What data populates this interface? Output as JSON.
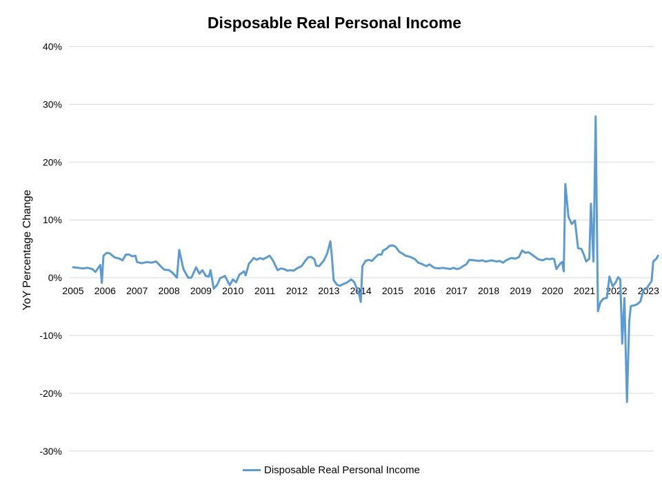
{
  "chart_data": {
    "type": "line",
    "title": "Disposable Real Personal Income",
    "xlabel": "",
    "ylabel": "YoY Percentage Change",
    "x_unit": "year (monthly observations)",
    "xlim": [
      2005.0,
      2023.3
    ],
    "ylim": [
      -30,
      40
    ],
    "y_ticks": [
      "40%",
      "30%",
      "20%",
      "10%",
      "0%",
      "-10%",
      "-20%",
      "-30%"
    ],
    "y_tick_values": [
      40,
      30,
      20,
      10,
      0,
      -10,
      -20,
      -30
    ],
    "x_ticks": [
      "2005",
      "2006",
      "2007",
      "2008",
      "2009",
      "2010",
      "2011",
      "2012",
      "2013",
      "2014",
      "2015",
      "2016",
      "2017",
      "2018",
      "2019",
      "2020",
      "2021",
      "2022",
      "2023"
    ],
    "grid": "horizontal",
    "legend_position": "bottom",
    "series": [
      {
        "name": "Disposable Real Personal Income",
        "color": "#5b9bd5",
        "points": [
          [
            2005.0,
            1.8
          ],
          [
            2005.15,
            1.7
          ],
          [
            2005.3,
            1.6
          ],
          [
            2005.45,
            1.7
          ],
          [
            2005.6,
            1.5
          ],
          [
            2005.7,
            1.0
          ],
          [
            2005.85,
            2.2
          ],
          [
            2005.9,
            -0.9
          ],
          [
            2005.95,
            3.8
          ],
          [
            2006.05,
            4.3
          ],
          [
            2006.15,
            4.2
          ],
          [
            2006.3,
            3.5
          ],
          [
            2006.45,
            3.3
          ],
          [
            2006.55,
            3.0
          ],
          [
            2006.65,
            4.0
          ],
          [
            2006.75,
            4.0
          ],
          [
            2006.85,
            3.7
          ],
          [
            2006.95,
            3.8
          ],
          [
            2007.0,
            2.7
          ],
          [
            2007.15,
            2.5
          ],
          [
            2007.3,
            2.7
          ],
          [
            2007.45,
            2.6
          ],
          [
            2007.6,
            2.8
          ],
          [
            2007.7,
            2.2
          ],
          [
            2007.85,
            1.4
          ],
          [
            2008.0,
            1.3
          ],
          [
            2008.1,
            0.9
          ],
          [
            2008.25,
            0.0
          ],
          [
            2008.32,
            4.8
          ],
          [
            2008.45,
            1.5
          ],
          [
            2008.6,
            0.0
          ],
          [
            2008.7,
            0.0
          ],
          [
            2008.85,
            1.8
          ],
          [
            2008.95,
            0.7
          ],
          [
            2009.05,
            1.3
          ],
          [
            2009.15,
            0.3
          ],
          [
            2009.25,
            0.2
          ],
          [
            2009.3,
            1.3
          ],
          [
            2009.4,
            -1.9
          ],
          [
            2009.5,
            -1.3
          ],
          [
            2009.6,
            -0.1
          ],
          [
            2009.75,
            0.3
          ],
          [
            2009.9,
            -1.3
          ],
          [
            2010.0,
            -0.3
          ],
          [
            2010.1,
            -0.8
          ],
          [
            2010.2,
            0.5
          ],
          [
            2010.35,
            1.1
          ],
          [
            2010.4,
            0.4
          ],
          [
            2010.5,
            2.4
          ],
          [
            2010.65,
            3.4
          ],
          [
            2010.75,
            3.1
          ],
          [
            2010.85,
            3.4
          ],
          [
            2010.95,
            3.2
          ],
          [
            2011.05,
            3.5
          ],
          [
            2011.15,
            3.8
          ],
          [
            2011.25,
            3.0
          ],
          [
            2011.4,
            1.3
          ],
          [
            2011.5,
            1.6
          ],
          [
            2011.6,
            1.5
          ],
          [
            2011.7,
            1.2
          ],
          [
            2011.8,
            1.3
          ],
          [
            2011.9,
            1.2
          ],
          [
            2012.0,
            1.6
          ],
          [
            2012.15,
            2.0
          ],
          [
            2012.25,
            2.8
          ],
          [
            2012.35,
            3.5
          ],
          [
            2012.45,
            3.6
          ],
          [
            2012.55,
            3.2
          ],
          [
            2012.6,
            2.1
          ],
          [
            2012.7,
            2.0
          ],
          [
            2012.85,
            3.0
          ],
          [
            2012.95,
            4.2
          ],
          [
            2013.05,
            6.3
          ],
          [
            2013.1,
            3.5
          ],
          [
            2013.15,
            -0.4
          ],
          [
            2013.25,
            -1.2
          ],
          [
            2013.35,
            -1.4
          ],
          [
            2013.45,
            -1.1
          ],
          [
            2013.55,
            -0.9
          ],
          [
            2013.65,
            -0.5
          ],
          [
            2013.7,
            -0.3
          ],
          [
            2013.8,
            -0.8
          ],
          [
            2013.85,
            -1.5
          ],
          [
            2013.95,
            -2.8
          ],
          [
            2014.0,
            -4.2
          ],
          [
            2014.05,
            2.0
          ],
          [
            2014.15,
            2.9
          ],
          [
            2014.25,
            3.1
          ],
          [
            2014.35,
            2.9
          ],
          [
            2014.45,
            3.5
          ],
          [
            2014.55,
            4.0
          ],
          [
            2014.65,
            4.0
          ],
          [
            2014.7,
            4.7
          ],
          [
            2014.8,
            5.0
          ],
          [
            2014.9,
            5.5
          ],
          [
            2015.0,
            5.6
          ],
          [
            2015.1,
            5.3
          ],
          [
            2015.2,
            4.5
          ],
          [
            2015.3,
            4.2
          ],
          [
            2015.4,
            3.8
          ],
          [
            2015.55,
            3.6
          ],
          [
            2015.7,
            3.2
          ],
          [
            2015.8,
            2.6
          ],
          [
            2015.9,
            2.4
          ],
          [
            2016.05,
            2.0
          ],
          [
            2016.15,
            2.3
          ],
          [
            2016.3,
            1.7
          ],
          [
            2016.45,
            1.6
          ],
          [
            2016.55,
            1.7
          ],
          [
            2016.7,
            1.6
          ],
          [
            2016.8,
            1.5
          ],
          [
            2016.9,
            1.7
          ],
          [
            2017.0,
            1.5
          ],
          [
            2017.1,
            1.6
          ],
          [
            2017.2,
            2.0
          ],
          [
            2017.3,
            2.3
          ],
          [
            2017.4,
            3.1
          ],
          [
            2017.55,
            3.0
          ],
          [
            2017.7,
            2.9
          ],
          [
            2017.8,
            3.0
          ],
          [
            2017.9,
            2.8
          ],
          [
            2018.0,
            2.9
          ],
          [
            2018.1,
            3.0
          ],
          [
            2018.25,
            2.8
          ],
          [
            2018.35,
            2.9
          ],
          [
            2018.45,
            2.6
          ],
          [
            2018.55,
            3.0
          ],
          [
            2018.7,
            3.4
          ],
          [
            2018.85,
            3.3
          ],
          [
            2018.95,
            3.6
          ],
          [
            2019.05,
            4.7
          ],
          [
            2019.15,
            4.3
          ],
          [
            2019.25,
            4.4
          ],
          [
            2019.35,
            4.0
          ],
          [
            2019.45,
            3.6
          ],
          [
            2019.55,
            3.2
          ],
          [
            2019.7,
            3.0
          ],
          [
            2019.8,
            3.3
          ],
          [
            2019.9,
            3.2
          ],
          [
            2020.0,
            3.3
          ],
          [
            2020.05,
            3.2
          ],
          [
            2020.12,
            1.5
          ],
          [
            2020.25,
            2.5
          ],
          [
            2020.3,
            2.7
          ],
          [
            2020.35,
            1.1
          ],
          [
            2020.4,
            16.2
          ],
          [
            2020.5,
            10.5
          ],
          [
            2020.6,
            9.3
          ],
          [
            2020.7,
            9.9
          ],
          [
            2020.8,
            5.1
          ],
          [
            2020.9,
            5.0
          ],
          [
            2020.98,
            4.0
          ],
          [
            2021.05,
            2.8
          ],
          [
            2021.15,
            3.3
          ],
          [
            2021.2,
            12.8
          ],
          [
            2021.28,
            2.8
          ],
          [
            2021.35,
            27.9
          ],
          [
            2021.42,
            -5.8
          ],
          [
            2021.5,
            -4.2
          ],
          [
            2021.6,
            -3.6
          ],
          [
            2021.7,
            -3.5
          ],
          [
            2021.78,
            0.2
          ],
          [
            2021.88,
            -1.5
          ],
          [
            2021.98,
            -0.8
          ],
          [
            2022.05,
            0.1
          ],
          [
            2022.12,
            -0.3
          ],
          [
            2022.18,
            -11.4
          ],
          [
            2022.25,
            -3.5
          ],
          [
            2022.33,
            -21.5
          ],
          [
            2022.4,
            -7.5
          ],
          [
            2022.45,
            -4.9
          ],
          [
            2022.55,
            -4.8
          ],
          [
            2022.65,
            -4.6
          ],
          [
            2022.75,
            -4.1
          ],
          [
            2022.85,
            -2.1
          ],
          [
            2022.95,
            -1.9
          ],
          [
            2023.02,
            -1.2
          ],
          [
            2023.1,
            -0.6
          ],
          [
            2023.15,
            2.8
          ],
          [
            2023.25,
            3.3
          ],
          [
            2023.3,
            3.8
          ]
        ]
      }
    ]
  }
}
